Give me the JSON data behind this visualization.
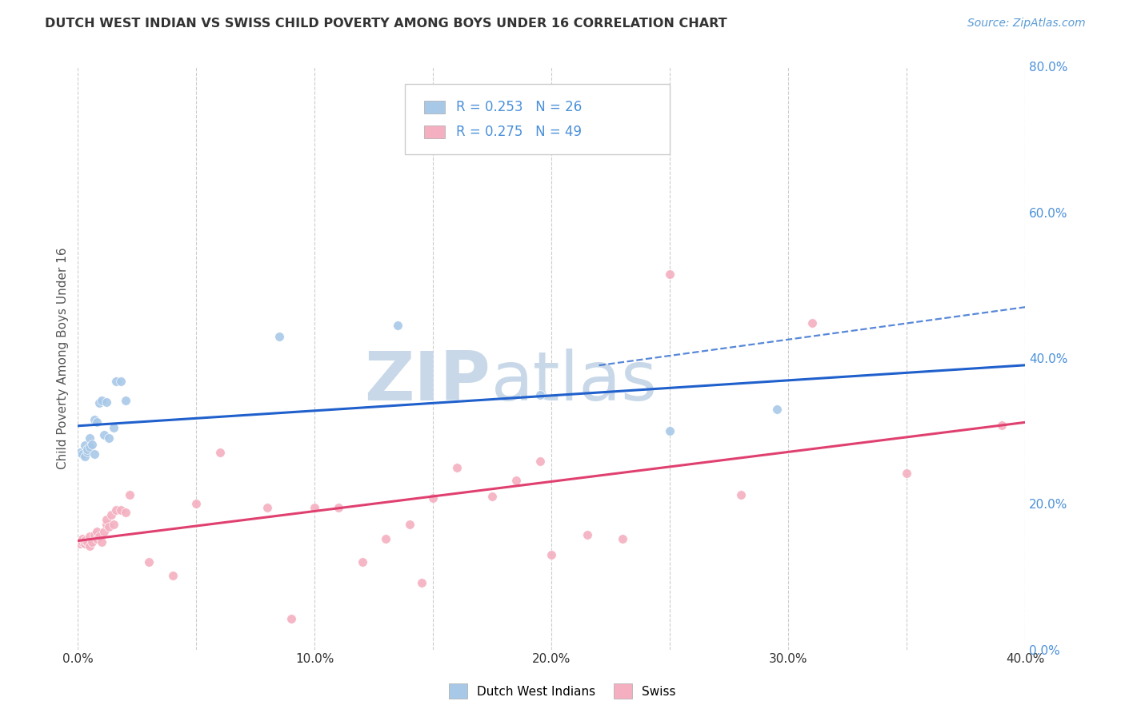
{
  "title": "DUTCH WEST INDIAN VS SWISS CHILD POVERTY AMONG BOYS UNDER 16 CORRELATION CHART",
  "source": "Source: ZipAtlas.com",
  "ylabel": "Child Poverty Among Boys Under 16",
  "xlim": [
    0.0,
    0.4
  ],
  "ylim": [
    0.0,
    0.8
  ],
  "xticks": [
    0.0,
    0.05,
    0.1,
    0.15,
    0.2,
    0.25,
    0.3,
    0.35,
    0.4
  ],
  "xtick_show": [
    0,
    10,
    20,
    30,
    40
  ],
  "yticks_right": [
    0.0,
    0.2,
    0.4,
    0.6,
    0.8
  ],
  "background_color": "#ffffff",
  "grid_color": "#cccccc",
  "title_color": "#333333",
  "source_color": "#5b9bd5",
  "ylabel_color": "#555555",
  "dutch_color": "#a8c8e8",
  "swiss_color": "#f4afc0",
  "dutch_line_color": "#2060cc",
  "swiss_line_color": "#e04070",
  "axis_label_color": "#4a90d9",
  "dutch_R": 0.253,
  "dutch_N": 26,
  "swiss_R": 0.275,
  "swiss_N": 49,
  "dutch_scatter_x": [
    0.001,
    0.002,
    0.003,
    0.003,
    0.004,
    0.004,
    0.005,
    0.005,
    0.006,
    0.007,
    0.007,
    0.008,
    0.009,
    0.01,
    0.011,
    0.012,
    0.013,
    0.015,
    0.016,
    0.018,
    0.02,
    0.085,
    0.135,
    0.195,
    0.25,
    0.295
  ],
  "dutch_scatter_y": [
    0.27,
    0.268,
    0.265,
    0.28,
    0.272,
    0.275,
    0.278,
    0.29,
    0.282,
    0.268,
    0.315,
    0.312,
    0.338,
    0.342,
    0.295,
    0.34,
    0.29,
    0.305,
    0.368,
    0.368,
    0.342,
    0.43,
    0.445,
    0.35,
    0.3,
    0.33
  ],
  "swiss_scatter_x": [
    0.001,
    0.002,
    0.002,
    0.003,
    0.003,
    0.004,
    0.005,
    0.005,
    0.006,
    0.007,
    0.008,
    0.008,
    0.009,
    0.01,
    0.011,
    0.012,
    0.012,
    0.013,
    0.014,
    0.015,
    0.016,
    0.018,
    0.02,
    0.022,
    0.03,
    0.04,
    0.05,
    0.06,
    0.08,
    0.09,
    0.1,
    0.11,
    0.12,
    0.13,
    0.14,
    0.145,
    0.15,
    0.16,
    0.175,
    0.185,
    0.195,
    0.2,
    0.215,
    0.23,
    0.25,
    0.28,
    0.31,
    0.35,
    0.39
  ],
  "swiss_scatter_y": [
    0.145,
    0.148,
    0.152,
    0.145,
    0.15,
    0.148,
    0.142,
    0.155,
    0.148,
    0.158,
    0.152,
    0.162,
    0.155,
    0.148,
    0.162,
    0.172,
    0.178,
    0.168,
    0.185,
    0.172,
    0.192,
    0.192,
    0.188,
    0.212,
    0.12,
    0.102,
    0.2,
    0.27,
    0.195,
    0.042,
    0.195,
    0.195,
    0.12,
    0.152,
    0.172,
    0.092,
    0.208,
    0.25,
    0.21,
    0.232,
    0.258,
    0.13,
    0.158,
    0.152,
    0.515,
    0.212,
    0.448,
    0.242,
    0.308
  ],
  "watermark_zip": "ZIP",
  "watermark_atlas": "atlas",
  "watermark_color": "#c8d8e8"
}
